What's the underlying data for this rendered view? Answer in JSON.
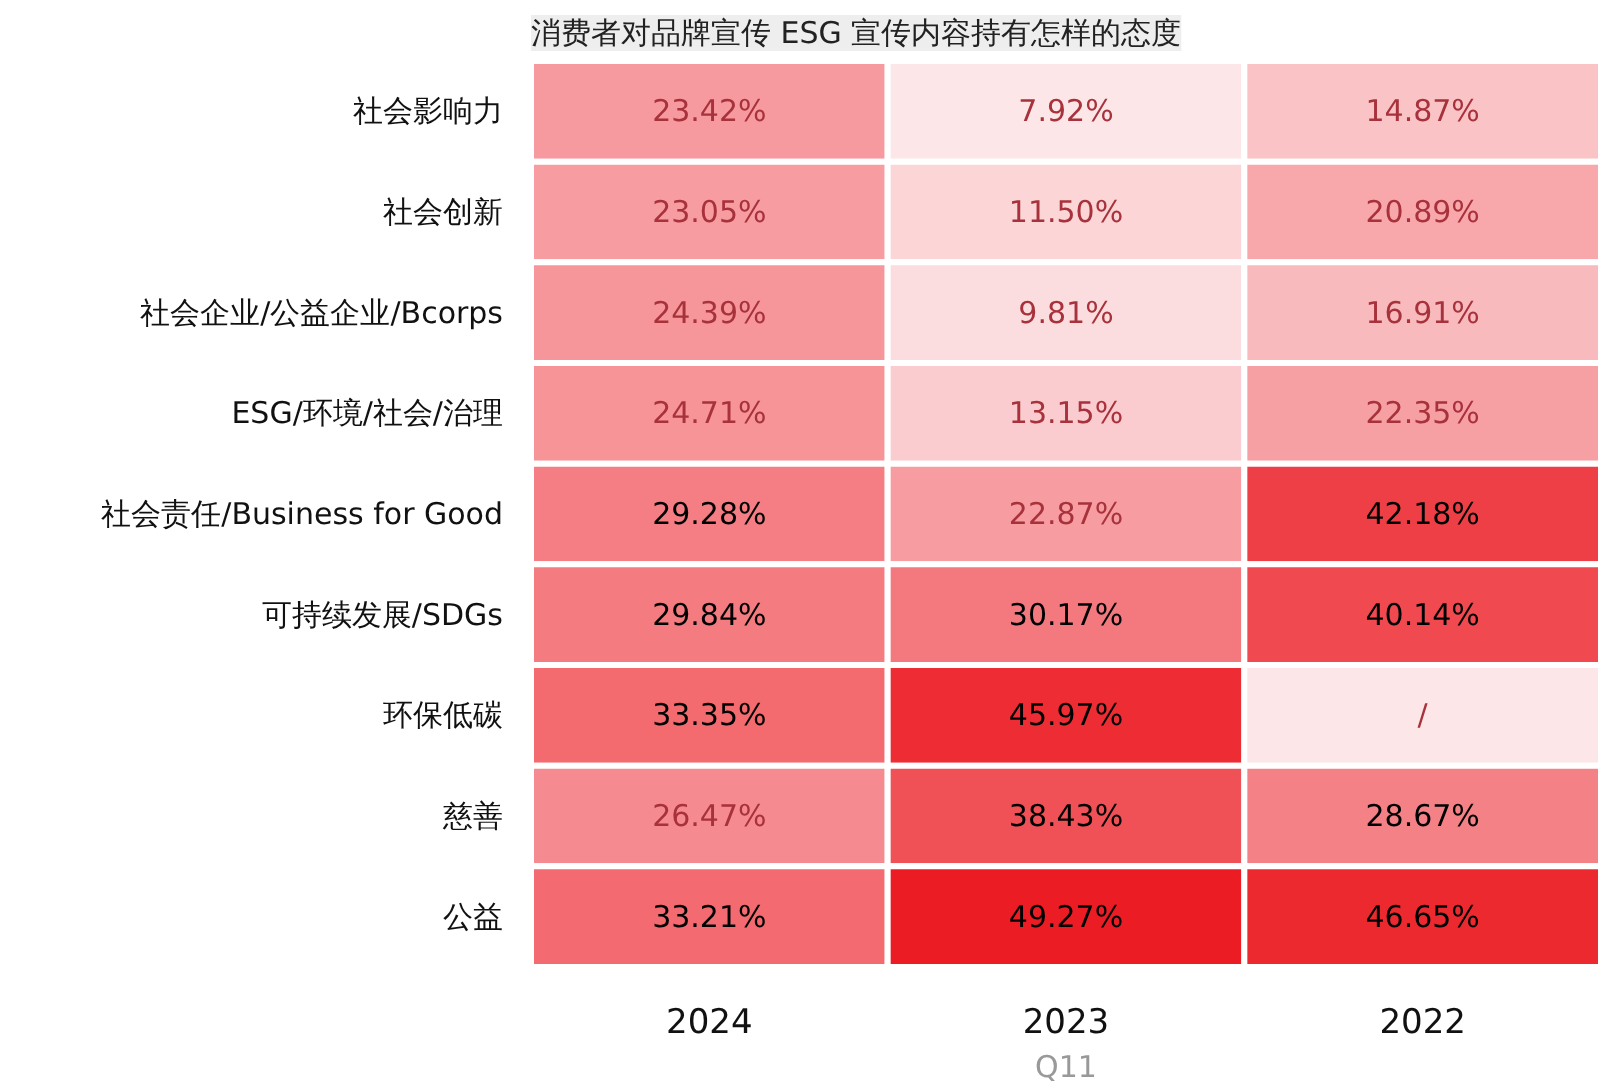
{
  "chart_data": {
    "type": "heatmap",
    "title": "消费者对品牌宣传 ESG 宣传内容持有怎样的态度",
    "xlabel": "Q11",
    "categories": [
      "2024",
      "2023",
      "2022"
    ],
    "y_categories": [
      "社会影响力",
      "社会创新",
      "社会企业/公益企业/Bcorps",
      "ESG/环境/社会/治理",
      "社会责任/Business for Good",
      "可持续发展/SDGs",
      "环保低碳",
      "慈善",
      "公益"
    ],
    "cells": [
      [
        23.42,
        7.92,
        14.87
      ],
      [
        23.05,
        11.5,
        20.89
      ],
      [
        24.39,
        9.81,
        16.91
      ],
      [
        24.71,
        13.15,
        22.35
      ],
      [
        29.28,
        22.87,
        42.18
      ],
      [
        29.84,
        30.17,
        40.14
      ],
      [
        33.35,
        45.97,
        null
      ],
      [
        26.47,
        38.43,
        28.67
      ],
      [
        33.21,
        49.27,
        46.65
      ]
    ],
    "cell_labels": [
      [
        "23.42%",
        "7.92%",
        "14.87%"
      ],
      [
        "23.05%",
        "11.50%",
        "20.89%"
      ],
      [
        "24.39%",
        "9.81%",
        "16.91%"
      ],
      [
        "24.71%",
        "13.15%",
        "22.35%"
      ],
      [
        "29.28%",
        "22.87%",
        "42.18%"
      ],
      [
        "29.84%",
        "30.17%",
        "40.14%"
      ],
      [
        "33.35%",
        "45.97%",
        "/"
      ],
      [
        "26.47%",
        "38.43%",
        "28.67%"
      ],
      [
        "33.21%",
        "49.27%",
        "46.65%"
      ]
    ],
    "colors": [
      "#fde6e8",
      "#ec1c24"
    ]
  }
}
